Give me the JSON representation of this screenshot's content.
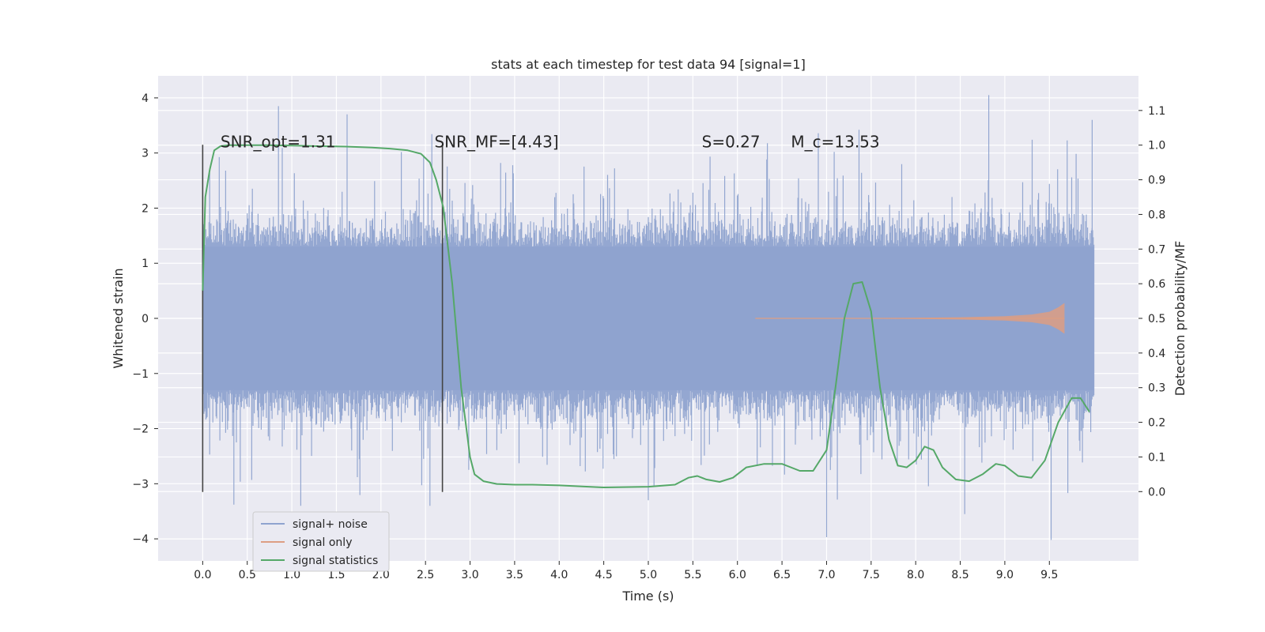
{
  "chart_data": {
    "type": "line",
    "title": "stats at each timestep for test data 94 [signal=1]",
    "xlabel": "Time (s)",
    "ylabel": "Whitened strain",
    "ylabel_right": "Detection probability/MF",
    "xlim": [
      -0.5,
      10.5
    ],
    "ylim": [
      -4.4,
      4.4
    ],
    "ylim_right": [
      -0.2,
      1.2
    ],
    "x_ticks": [
      0.0,
      0.5,
      1.0,
      1.5,
      2.0,
      2.5,
      3.0,
      3.5,
      4.0,
      4.5,
      5.0,
      5.5,
      6.0,
      6.5,
      7.0,
      7.5,
      8.0,
      8.5,
      9.0,
      9.5
    ],
    "x_tick_labels": [
      "0.0",
      "0.5",
      "1.0",
      "1.5",
      "2.0",
      "2.5",
      "3.0",
      "3.5",
      "4.0",
      "4.5",
      "5.0",
      "5.5",
      "6.0",
      "6.5",
      "7.0",
      "7.5",
      "8.0",
      "8.5",
      "9.0",
      "9.5"
    ],
    "y_ticks": [
      -4,
      -3,
      -2,
      -1,
      0,
      1,
      2,
      3,
      4
    ],
    "y_tick_labels": [
      "−4",
      "−3",
      "−2",
      "−1",
      "0",
      "1",
      "2",
      "3",
      "4"
    ],
    "y2_ticks": [
      0.0,
      0.1,
      0.2,
      0.3,
      0.4,
      0.5,
      0.6,
      0.7,
      0.8,
      0.9,
      1.0,
      1.1
    ],
    "y2_tick_labels": [
      "0.0",
      "0.1",
      "0.2",
      "0.3",
      "0.4",
      "0.5",
      "0.6",
      "0.7",
      "0.8",
      "0.9",
      "1.0",
      "1.1"
    ],
    "grid": true,
    "legend_position": "lower-left",
    "annotations": [
      {
        "text": "SNR_opt=1.31",
        "x": 0.2,
        "y": 3.2
      },
      {
        "text": "SNR_MF=[4.43]",
        "x": 2.6,
        "y": 3.2
      },
      {
        "text": "S=0.27",
        "x": 5.6,
        "y": 3.2
      },
      {
        "text": "M_c=13.53",
        "x": 6.6,
        "y": 3.2
      }
    ],
    "vlines": [
      {
        "x": 0.0,
        "ymin": -3.15,
        "ymax": 3.15
      },
      {
        "x": 2.69,
        "ymin": -3.15,
        "ymax": 3.15
      }
    ],
    "series": [
      {
        "name": "signal+ noise",
        "color": "#8fa3cf",
        "axis": "left",
        "x_range": [
          0.0,
          10.0
        ],
        "envelope_max_abs": 4.05,
        "core_band": [
          -1.3,
          1.3
        ]
      },
      {
        "name": "signal only",
        "color": "#dd9e83",
        "axis": "left",
        "x": [
          6.2,
          7.0,
          8.0,
          8.5,
          9.0,
          9.3,
          9.5,
          9.6,
          9.67
        ],
        "amplitude": [
          0.0,
          0.005,
          0.01,
          0.02,
          0.04,
          0.07,
          0.12,
          0.2,
          0.28
        ]
      },
      {
        "name": "signal statistics",
        "color": "#55a868",
        "axis": "right",
        "x": [
          0.0,
          0.03,
          0.08,
          0.13,
          0.2,
          0.3,
          0.5,
          0.7,
          1.0,
          1.3,
          1.6,
          1.9,
          2.1,
          2.3,
          2.45,
          2.55,
          2.62,
          2.7,
          2.8,
          2.9,
          3.0,
          3.05,
          3.15,
          3.3,
          3.5,
          3.7,
          4.0,
          4.5,
          5.0,
          5.3,
          5.45,
          5.55,
          5.65,
          5.8,
          5.95,
          6.1,
          6.3,
          6.5,
          6.7,
          6.85,
          7.0,
          7.1,
          7.2,
          7.3,
          7.4,
          7.5,
          7.6,
          7.7,
          7.8,
          7.9,
          8.0,
          8.1,
          8.2,
          8.3,
          8.45,
          8.6,
          8.75,
          8.9,
          9.0,
          9.15,
          9.3,
          9.45,
          9.6,
          9.75,
          9.85,
          9.95
        ],
        "y": [
          0.58,
          0.85,
          0.93,
          0.985,
          0.997,
          1.0,
          1.0,
          1.0,
          0.999,
          0.997,
          0.996,
          0.993,
          0.99,
          0.985,
          0.975,
          0.95,
          0.9,
          0.82,
          0.6,
          0.3,
          0.1,
          0.05,
          0.03,
          0.022,
          0.02,
          0.02,
          0.018,
          0.012,
          0.014,
          0.02,
          0.04,
          0.045,
          0.035,
          0.028,
          0.04,
          0.07,
          0.08,
          0.08,
          0.06,
          0.06,
          0.12,
          0.3,
          0.5,
          0.6,
          0.605,
          0.52,
          0.3,
          0.15,
          0.075,
          0.07,
          0.09,
          0.13,
          0.12,
          0.07,
          0.035,
          0.03,
          0.05,
          0.08,
          0.075,
          0.045,
          0.04,
          0.09,
          0.2,
          0.27,
          0.27,
          0.23
        ]
      }
    ]
  }
}
